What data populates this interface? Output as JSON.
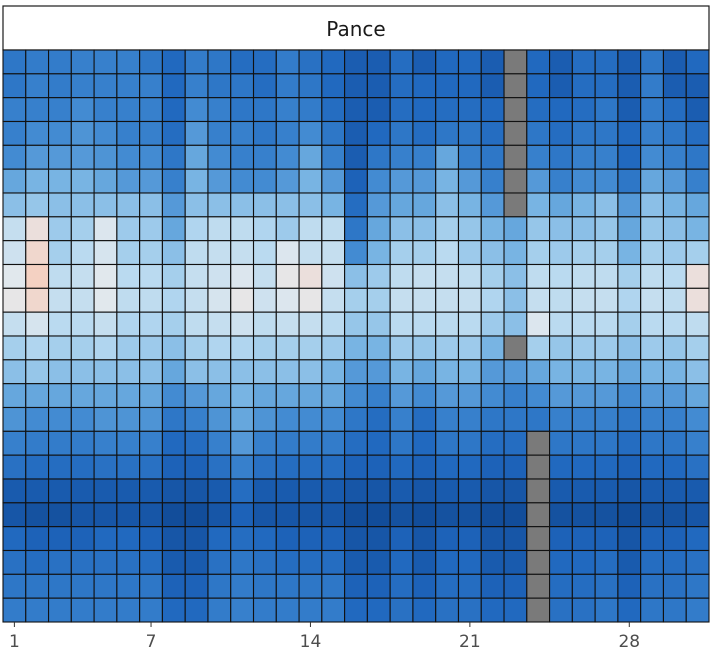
{
  "chart_data": {
    "type": "heatmap",
    "facet_title": "Pance",
    "x_ticks": [
      1,
      7,
      14,
      21,
      28
    ],
    "x_range": [
      1,
      31
    ],
    "n_rows": 24,
    "missing_color": "#7a7a7a",
    "color_scale": [
      "#0b3f86",
      "#1f66bd",
      "#3d87d0",
      "#78b4e3",
      "#b6d9f0",
      "#e5e9ed",
      "#fbc6b0"
    ],
    "rows": [
      [
        0.25,
        0.28,
        0.28,
        0.3,
        0.3,
        0.3,
        0.25,
        0.18,
        0.28,
        0.25,
        0.2,
        0.2,
        0.28,
        0.22,
        0.18,
        0.13,
        0.13,
        0.2,
        0.13,
        0.18,
        0.18,
        0.13,
        null,
        0.18,
        0.13,
        0.2,
        0.2,
        0.13,
        0.25,
        0.13,
        0.18
      ],
      [
        0.25,
        0.3,
        0.28,
        0.3,
        0.3,
        0.3,
        0.3,
        0.18,
        0.3,
        0.25,
        0.25,
        0.2,
        0.28,
        0.25,
        0.18,
        0.13,
        0.13,
        0.2,
        0.18,
        0.18,
        0.18,
        0.13,
        null,
        0.18,
        0.13,
        0.2,
        0.2,
        0.13,
        0.28,
        0.13,
        0.13
      ],
      [
        0.3,
        0.3,
        0.3,
        0.35,
        0.3,
        0.3,
        0.3,
        0.18,
        0.35,
        0.3,
        0.25,
        0.25,
        0.3,
        0.28,
        0.2,
        0.13,
        0.13,
        0.2,
        0.18,
        0.2,
        0.2,
        0.18,
        null,
        0.2,
        0.18,
        0.2,
        0.25,
        0.13,
        0.28,
        0.2,
        0.13
      ],
      [
        0.3,
        0.35,
        0.35,
        0.38,
        0.35,
        0.3,
        0.3,
        0.2,
        0.4,
        0.3,
        0.3,
        0.25,
        0.3,
        0.35,
        0.25,
        0.13,
        0.18,
        0.25,
        0.2,
        0.25,
        0.25,
        0.2,
        null,
        0.25,
        0.2,
        0.25,
        0.25,
        0.18,
        0.3,
        0.25,
        0.2
      ],
      [
        0.35,
        0.4,
        0.4,
        0.4,
        0.38,
        0.35,
        0.35,
        0.25,
        0.45,
        0.35,
        0.3,
        0.3,
        0.35,
        0.45,
        0.3,
        0.13,
        0.25,
        0.3,
        0.3,
        0.45,
        0.3,
        0.25,
        null,
        0.3,
        0.25,
        0.3,
        0.3,
        0.18,
        0.35,
        0.3,
        0.25
      ],
      [
        0.45,
        0.5,
        0.5,
        0.5,
        0.45,
        0.4,
        0.4,
        0.3,
        0.5,
        0.4,
        0.35,
        0.35,
        0.4,
        0.5,
        0.4,
        0.15,
        0.35,
        0.4,
        0.4,
        0.5,
        0.4,
        0.3,
        null,
        0.4,
        0.3,
        0.35,
        0.35,
        0.25,
        0.45,
        0.4,
        0.3
      ],
      [
        0.55,
        0.58,
        0.55,
        0.55,
        0.55,
        0.55,
        0.55,
        0.4,
        0.55,
        0.55,
        0.55,
        0.55,
        0.55,
        0.55,
        0.5,
        0.2,
        0.4,
        0.45,
        0.45,
        0.55,
        0.5,
        0.4,
        null,
        0.5,
        0.45,
        0.5,
        0.55,
        0.4,
        0.55,
        0.5,
        0.45
      ],
      [
        0.72,
        0.88,
        0.6,
        0.62,
        0.8,
        0.6,
        0.6,
        0.45,
        0.65,
        0.7,
        0.7,
        0.65,
        0.6,
        0.7,
        0.7,
        0.25,
        0.45,
        0.55,
        0.55,
        0.62,
        0.58,
        0.5,
        0.45,
        0.58,
        0.55,
        0.55,
        0.58,
        0.45,
        0.58,
        0.55,
        0.5
      ],
      [
        0.75,
        0.92,
        0.62,
        0.68,
        0.78,
        0.62,
        0.62,
        0.55,
        0.7,
        0.72,
        0.72,
        0.68,
        0.8,
        0.72,
        0.72,
        0.35,
        0.5,
        0.62,
        0.62,
        0.68,
        0.6,
        0.55,
        0.5,
        0.62,
        0.6,
        0.62,
        0.62,
        0.5,
        0.62,
        0.6,
        0.62
      ],
      [
        0.82,
        0.95,
        0.7,
        0.72,
        0.82,
        0.68,
        0.68,
        0.62,
        0.72,
        0.75,
        0.8,
        0.72,
        0.85,
        0.88,
        0.75,
        0.55,
        0.6,
        0.7,
        0.72,
        0.72,
        0.7,
        0.62,
        0.55,
        0.7,
        0.68,
        0.7,
        0.7,
        0.62,
        0.7,
        0.68,
        0.88
      ],
      [
        0.85,
        0.92,
        0.72,
        0.72,
        0.82,
        0.7,
        0.7,
        0.65,
        0.72,
        0.78,
        0.85,
        0.75,
        0.8,
        0.85,
        0.72,
        0.62,
        0.62,
        0.72,
        0.72,
        0.72,
        0.72,
        0.65,
        0.55,
        0.72,
        0.7,
        0.72,
        0.72,
        0.65,
        0.72,
        0.7,
        0.88
      ],
      [
        0.72,
        0.78,
        0.68,
        0.68,
        0.72,
        0.65,
        0.65,
        0.62,
        0.7,
        0.72,
        0.75,
        0.7,
        0.72,
        0.72,
        0.68,
        0.58,
        0.58,
        0.68,
        0.68,
        0.68,
        0.68,
        0.6,
        0.55,
        0.8,
        0.68,
        0.68,
        0.68,
        0.62,
        0.68,
        0.68,
        0.7
      ],
      [
        0.62,
        0.65,
        0.62,
        0.62,
        0.65,
        0.6,
        0.6,
        0.55,
        0.62,
        0.65,
        0.65,
        0.62,
        0.62,
        0.62,
        0.6,
        0.5,
        0.5,
        0.6,
        0.58,
        0.6,
        0.6,
        0.5,
        null,
        0.62,
        0.58,
        0.6,
        0.6,
        0.55,
        0.6,
        0.58,
        0.62
      ],
      [
        0.55,
        0.58,
        0.55,
        0.55,
        0.55,
        0.55,
        0.55,
        0.45,
        0.55,
        0.55,
        0.55,
        0.55,
        0.55,
        0.55,
        0.5,
        0.4,
        0.4,
        0.5,
        0.45,
        0.5,
        0.5,
        0.4,
        0.4,
        0.45,
        0.5,
        0.5,
        0.5,
        0.45,
        0.5,
        0.5,
        0.55
      ],
      [
        0.45,
        0.45,
        0.45,
        0.45,
        0.45,
        0.45,
        0.45,
        0.35,
        0.4,
        0.45,
        0.5,
        0.45,
        0.45,
        0.45,
        0.45,
        0.35,
        0.3,
        0.4,
        0.35,
        0.4,
        0.4,
        0.35,
        0.3,
        0.35,
        0.4,
        0.4,
        0.4,
        0.35,
        0.4,
        0.4,
        0.45
      ],
      [
        0.38,
        0.35,
        0.35,
        0.35,
        0.38,
        0.38,
        0.38,
        0.25,
        0.3,
        0.38,
        0.45,
        0.38,
        0.35,
        0.35,
        0.35,
        0.25,
        0.2,
        0.3,
        0.2,
        0.3,
        0.3,
        0.25,
        0.25,
        0.25,
        0.3,
        0.3,
        0.3,
        0.25,
        0.3,
        0.3,
        0.35
      ],
      [
        0.3,
        0.28,
        0.28,
        0.28,
        0.3,
        0.3,
        0.3,
        0.18,
        0.2,
        0.3,
        0.4,
        0.3,
        0.28,
        0.28,
        0.28,
        0.2,
        0.18,
        0.25,
        0.18,
        0.25,
        0.25,
        0.2,
        0.2,
        null,
        0.25,
        0.25,
        0.25,
        0.2,
        0.25,
        0.25,
        0.3
      ],
      [
        0.22,
        0.2,
        0.2,
        0.2,
        0.22,
        0.22,
        0.22,
        0.15,
        0.15,
        0.22,
        0.3,
        0.22,
        0.2,
        0.2,
        0.2,
        0.15,
        0.15,
        0.18,
        0.15,
        0.18,
        0.18,
        0.15,
        0.15,
        null,
        0.18,
        0.18,
        0.18,
        0.15,
        0.18,
        0.18,
        0.22
      ],
      [
        0.12,
        0.12,
        0.12,
        0.12,
        0.12,
        0.12,
        0.12,
        0.1,
        0.1,
        0.12,
        0.2,
        0.12,
        0.12,
        0.12,
        0.12,
        0.1,
        0.1,
        0.12,
        0.1,
        0.12,
        0.12,
        0.1,
        0.1,
        null,
        0.12,
        0.12,
        0.12,
        0.1,
        0.12,
        0.12,
        0.12
      ],
      [
        0.1,
        0.08,
        0.08,
        0.1,
        0.1,
        0.1,
        0.1,
        0.06,
        0.06,
        0.1,
        0.15,
        0.1,
        0.1,
        0.1,
        0.1,
        0.06,
        0.06,
        0.08,
        0.06,
        0.08,
        0.08,
        0.06,
        0.06,
        null,
        0.08,
        0.08,
        0.08,
        0.06,
        0.08,
        0.08,
        0.1
      ],
      [
        0.18,
        0.15,
        0.15,
        0.15,
        0.18,
        0.18,
        0.15,
        0.1,
        0.1,
        0.18,
        0.2,
        0.18,
        0.15,
        0.15,
        0.15,
        0.1,
        0.1,
        0.15,
        0.1,
        0.15,
        0.15,
        0.1,
        0.1,
        null,
        0.15,
        0.15,
        0.15,
        0.1,
        0.15,
        0.15,
        0.18
      ],
      [
        0.22,
        0.2,
        0.22,
        0.22,
        0.22,
        0.22,
        0.2,
        0.12,
        0.12,
        0.22,
        0.25,
        0.22,
        0.2,
        0.2,
        0.2,
        0.12,
        0.12,
        0.18,
        0.12,
        0.18,
        0.18,
        0.12,
        0.12,
        null,
        0.18,
        0.18,
        0.2,
        0.12,
        0.2,
        0.2,
        0.22
      ],
      [
        0.25,
        0.25,
        0.25,
        0.25,
        0.25,
        0.25,
        0.25,
        0.15,
        0.15,
        0.25,
        0.28,
        0.25,
        0.25,
        0.25,
        0.25,
        0.15,
        0.15,
        0.2,
        0.15,
        0.2,
        0.2,
        0.15,
        0.15,
        null,
        0.2,
        0.2,
        0.22,
        0.15,
        0.22,
        0.22,
        0.25
      ],
      [
        0.28,
        0.28,
        0.28,
        0.28,
        0.28,
        0.28,
        0.28,
        0.18,
        0.18,
        0.28,
        0.3,
        0.28,
        0.28,
        0.28,
        0.28,
        0.18,
        0.18,
        0.22,
        0.18,
        0.22,
        0.22,
        0.18,
        0.18,
        null,
        0.22,
        0.22,
        0.25,
        0.18,
        0.25,
        0.25,
        0.28
      ]
    ]
  }
}
